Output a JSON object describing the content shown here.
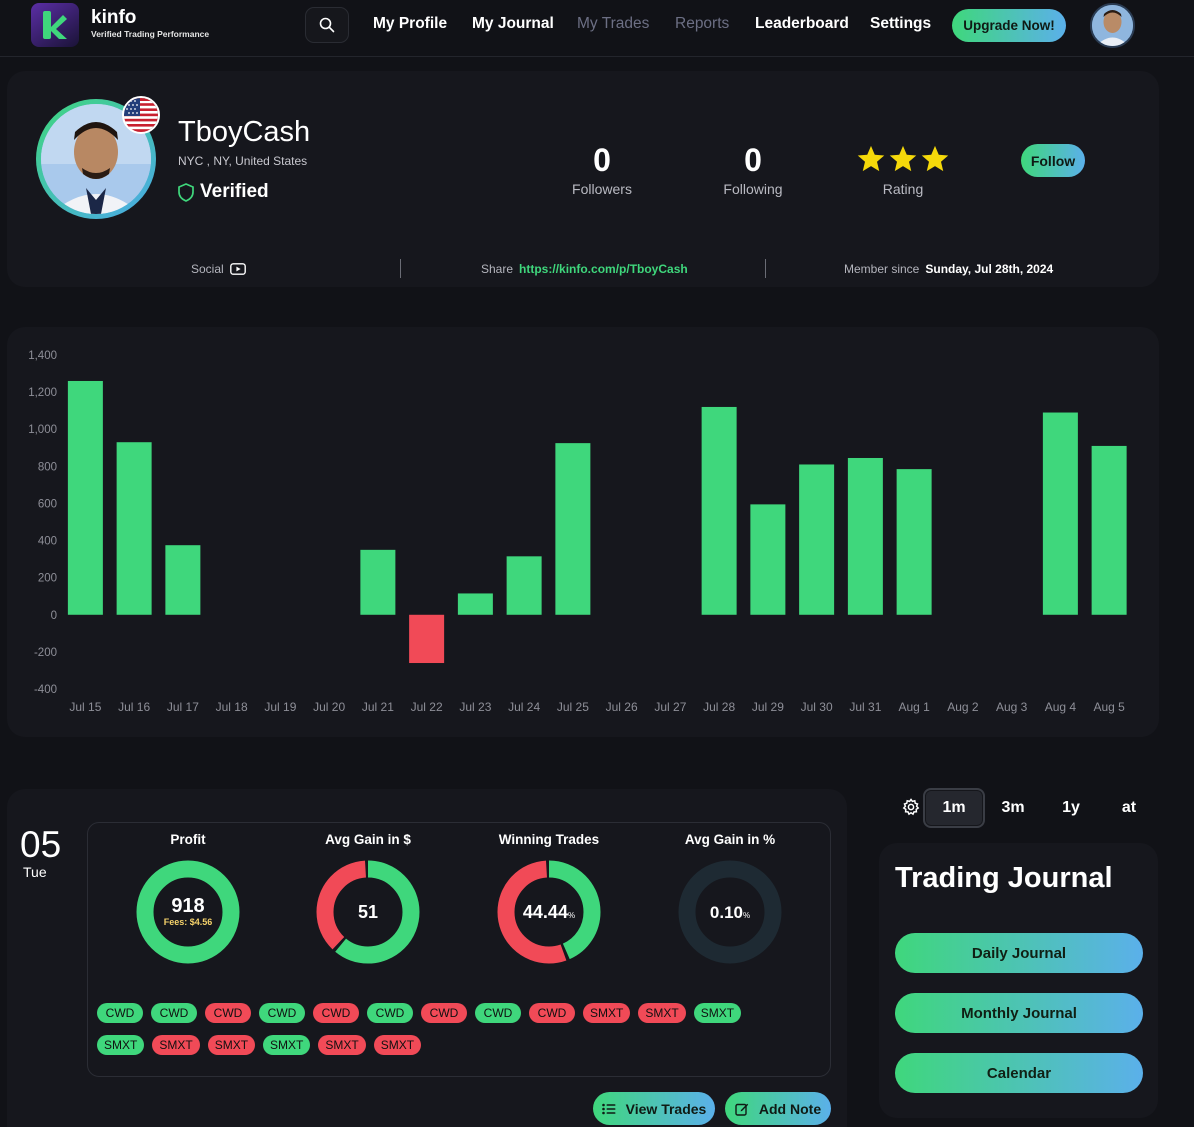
{
  "header": {
    "brand_name": "kinfo",
    "brand_tagline": "Verified Trading Performance",
    "nav": [
      "My Profile",
      "My Journal",
      "My Trades",
      "Reports",
      "Leaderboard",
      "Settings"
    ],
    "upgrade_label": "Upgrade Now!"
  },
  "profile": {
    "username": "TboyCash",
    "location": "NYC , NY, United States",
    "verified_label": "Verified",
    "followers_count": "0",
    "followers_label": "Followers",
    "following_count": "0",
    "following_label": "Following",
    "rating_label": "Rating",
    "rating_stars": 3,
    "follow_label": "Follow",
    "social_label": "Social",
    "share_label": "Share",
    "share_url": "https://kinfo.com/p/TboyCash",
    "member_since_label": "Member since",
    "member_since_date": "Sunday, Jul 28th, 2024"
  },
  "colors": {
    "accent_green": "#3fd77c",
    "accent_blue": "#5bb0ea",
    "loss_red": "#f14a57",
    "card_bg": "#16171d",
    "page_bg": "#111217"
  },
  "chart_data": {
    "type": "bar",
    "categories": [
      "Jul 15",
      "Jul 16",
      "Jul 17",
      "Jul 18",
      "Jul 19",
      "Jul 20",
      "Jul 21",
      "Jul 22",
      "Jul 23",
      "Jul 24",
      "Jul 25",
      "Jul 26",
      "Jul 27",
      "Jul 28",
      "Jul 29",
      "Jul 30",
      "Jul 31",
      "Aug 1",
      "Aug 2",
      "Aug 3",
      "Aug 4",
      "Aug 5"
    ],
    "values": [
      1260,
      930,
      375,
      0,
      0,
      0,
      350,
      -260,
      115,
      315,
      925,
      0,
      0,
      1120,
      595,
      810,
      845,
      785,
      0,
      0,
      1090,
      910
    ],
    "yticks": [
      "1,400",
      "1,200",
      "1,000",
      "800",
      "600",
      "400",
      "200",
      "0",
      "-200",
      "-400"
    ],
    "ylim": [
      -400,
      1400
    ],
    "grid": false,
    "positive_color": "#3fd77c",
    "negative_color": "#f14a57"
  },
  "day": {
    "day_number": "05",
    "day_name": "Tue",
    "metrics": [
      {
        "title": "Profit",
        "value": "918",
        "sub": "Fees: $4.56",
        "win_fraction": 1.0
      },
      {
        "title": "Avg Gain in $",
        "value": "51",
        "sub": "",
        "win_fraction": 0.62
      },
      {
        "title": "Winning Trades",
        "value": "44.44",
        "unit": "%",
        "sub": "",
        "win_fraction": 0.4444
      },
      {
        "title": "Avg Gain in %",
        "value": "0.10",
        "unit": "%",
        "sub": "",
        "win_fraction": 0.0
      }
    ],
    "tickers_row1": [
      {
        "symbol": "CWD",
        "result": "win"
      },
      {
        "symbol": "CWD",
        "result": "win"
      },
      {
        "symbol": "CWD",
        "result": "loss"
      },
      {
        "symbol": "CWD",
        "result": "win"
      },
      {
        "symbol": "CWD",
        "result": "loss"
      },
      {
        "symbol": "CWD",
        "result": "win"
      },
      {
        "symbol": "CWD",
        "result": "loss"
      },
      {
        "symbol": "CWD",
        "result": "win"
      },
      {
        "symbol": "CWD",
        "result": "loss"
      },
      {
        "symbol": "SMXT",
        "result": "loss"
      },
      {
        "symbol": "SMXT",
        "result": "loss"
      },
      {
        "symbol": "SMXT",
        "result": "win"
      }
    ],
    "tickers_row2": [
      {
        "symbol": "SMXT",
        "result": "win"
      },
      {
        "symbol": "SMXT",
        "result": "loss"
      },
      {
        "symbol": "SMXT",
        "result": "loss"
      },
      {
        "symbol": "SMXT",
        "result": "win"
      },
      {
        "symbol": "SMXT",
        "result": "loss"
      },
      {
        "symbol": "SMXT",
        "result": "loss"
      }
    ],
    "view_trades_label": "View Trades",
    "add_note_label": "Add Note"
  },
  "range": {
    "options": [
      "1m",
      "3m",
      "1y",
      "at"
    ],
    "selected": "1m"
  },
  "journal": {
    "title": "Trading Journal",
    "buttons": [
      "Daily Journal",
      "Monthly Journal",
      "Calendar"
    ]
  }
}
